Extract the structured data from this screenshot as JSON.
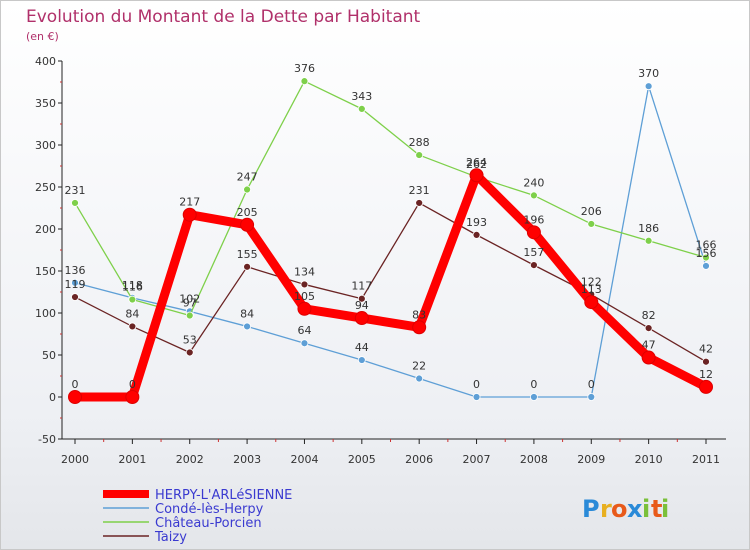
{
  "chart_data": {
    "type": "line",
    "title": "Evolution du Montant de la Dette par Habitant",
    "subtitle": "(en €)",
    "categories": [
      "2000",
      "2001",
      "2002",
      "2003",
      "2004",
      "2005",
      "2006",
      "2007",
      "2008",
      "2009",
      "2010",
      "2011"
    ],
    "yticks": [
      -50,
      0,
      50,
      100,
      150,
      200,
      250,
      300,
      350,
      400
    ],
    "ylim": [
      -50,
      400
    ],
    "grid": false,
    "legend_position": "bottom-left",
    "series": [
      {
        "name": "HERPY-L'ARLéSIENNE",
        "color": "#ff0000",
        "values": [
          0,
          0,
          217,
          205,
          105,
          94,
          83,
          264,
          196,
          113,
          47,
          12
        ],
        "primary": true
      },
      {
        "name": "Condé-lès-Herpy",
        "color": "#5e9fd6",
        "values": [
          136,
          118,
          102,
          84,
          64,
          44,
          22,
          0,
          0,
          0,
          370,
          156
        ]
      },
      {
        "name": "Château-Porcien",
        "color": "#7ed04a",
        "values": [
          231,
          116,
          97,
          247,
          376,
          343,
          288,
          262,
          240,
          206,
          186,
          166
        ]
      },
      {
        "name": "Taizy",
        "color": "#6b2424",
        "values": [
          119,
          84,
          53,
          155,
          134,
          117,
          231,
          193,
          157,
          122,
          82,
          42
        ]
      }
    ]
  },
  "brand": {
    "logo_letters": [
      "P",
      "r",
      "o",
      "x",
      "i",
      "t",
      "i"
    ],
    "logo_colors": [
      "#2a8ad8",
      "#e8b020",
      "#e85a1a",
      "#2a8ad8",
      "#7ac03a",
      "#e85a1a",
      "#7ac03a"
    ]
  }
}
